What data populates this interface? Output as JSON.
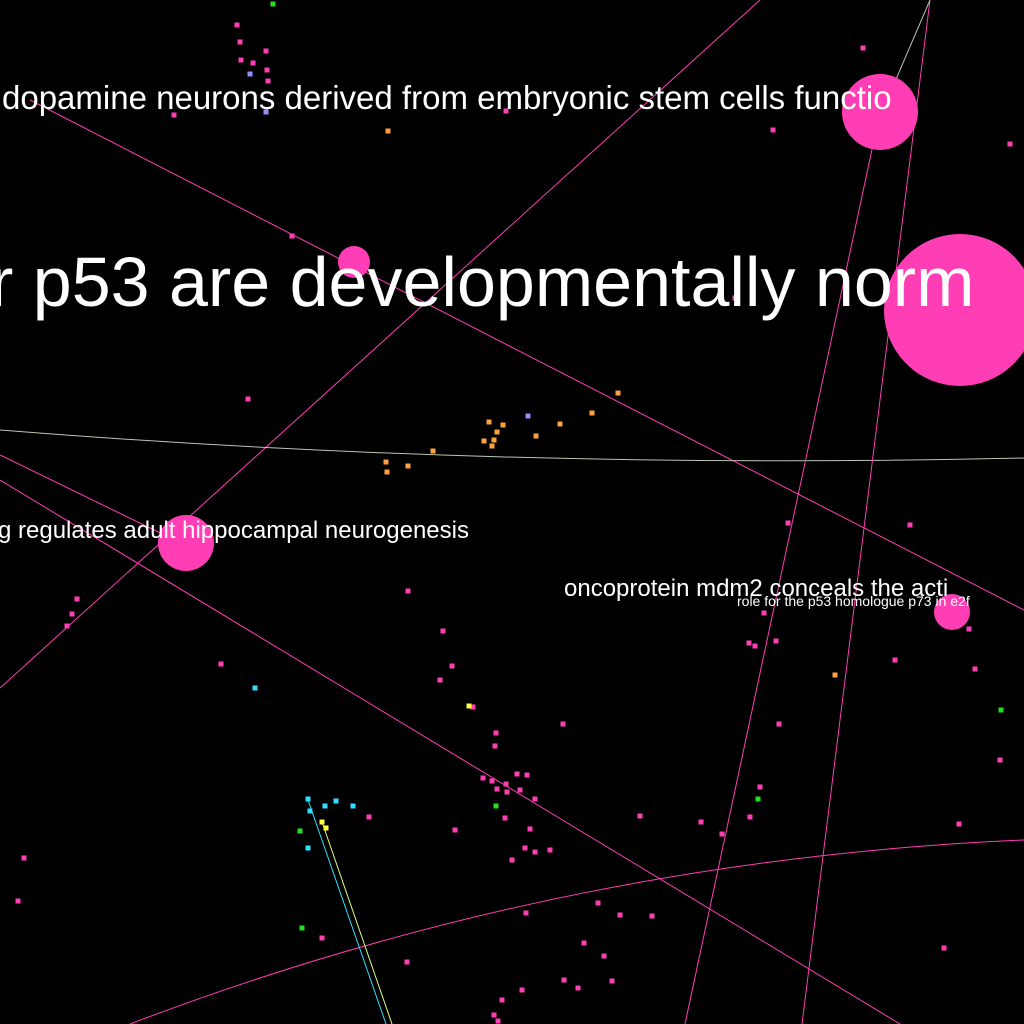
{
  "labels": {
    "l1": "dopamine neurons derived from embryonic stem cells functio",
    "l2": "r p53 are developmentally norm",
    "l3": "g regulates adult hippocampal neurogenesis",
    "l4": "oncoprotein mdm2 conceals the acti",
    "l5": "role for the p53 homologue p73 in e2f"
  },
  "colors": {
    "background": "#000000",
    "node_major": "#ff3eb5",
    "node_orange": "#ffa040",
    "node_cyan": "#30e0ff",
    "node_green": "#20e020",
    "node_yellow": "#ffff40",
    "node_violet": "#9a8cff",
    "edge_pink": "#ff3eb5",
    "edge_gray": "#b8c8b0",
    "edge_cyan": "#30e0ff",
    "edge_yellow": "#e0ff80",
    "label": "#ffffff"
  }
}
